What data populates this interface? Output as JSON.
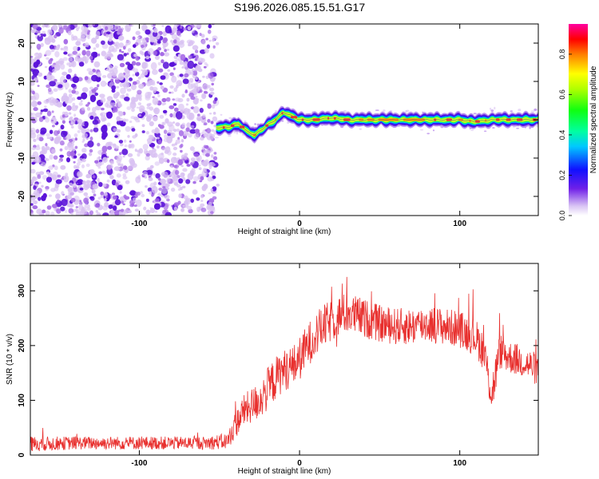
{
  "figure_title": "S196.2026.085.15.51.G17",
  "colors": {
    "snr_line": "#e8302e",
    "ridge": "#ff2a2a",
    "noise_light": "#d9c2f2",
    "noise_mid": "#a56ae6",
    "noise_dark": "#5a12d9"
  },
  "chart_data": [
    {
      "type": "heatmap",
      "id": "spectrogram",
      "title": "",
      "xlabel": "Height of straight line (km)",
      "ylabel": "Frequency (Hz)",
      "xlim": [
        -168,
        149
      ],
      "ylim": [
        -25,
        25
      ],
      "x_ticks": [
        -100,
        0,
        100
      ],
      "y_ticks": [
        -20,
        -10,
        0,
        10,
        20
      ],
      "noise_region_x": [
        -168,
        -52
      ],
      "ridge_x": [
        -52,
        149
      ],
      "ridge_frequency": {
        "x": [
          -52,
          -45,
          -38,
          -33,
          -28,
          -22,
          -15,
          -10,
          -5,
          0,
          10,
          20,
          30,
          40,
          60,
          80,
          100,
          110,
          120,
          130,
          149
        ],
        "y": [
          -2,
          -2,
          -1,
          -3,
          -4,
          -2,
          0,
          2,
          1,
          0,
          0,
          0.5,
          0,
          0,
          0,
          0,
          0,
          -0.5,
          0,
          0,
          0
        ]
      },
      "colorbar": {
        "label": "Normalized spectral amplitude",
        "range": [
          0.0,
          0.95
        ],
        "ticks": [
          0.0,
          0.2,
          0.4,
          0.6,
          0.8
        ],
        "tick_labels": [
          "0.0",
          "0.2",
          "0.4",
          "0.6",
          "0.8"
        ]
      }
    },
    {
      "type": "line",
      "id": "snr",
      "title": "",
      "xlabel": "Height of straight line (km)",
      "ylabel": "SNR (10 * v/v)",
      "xlim": [
        -168,
        149
      ],
      "ylim": [
        0,
        350
      ],
      "x_ticks": [
        -100,
        0,
        100
      ],
      "y_ticks": [
        0,
        100,
        200,
        300
      ],
      "series": [
        {
          "name": "SNR",
          "x": [
            -168,
            -140,
            -100,
            -60,
            -45,
            -40,
            -35,
            -25,
            -20,
            -15,
            -10,
            -5,
            0,
            5,
            10,
            15,
            20,
            25,
            30,
            40,
            50,
            60,
            70,
            80,
            90,
            100,
            110,
            115,
            120,
            125,
            130,
            140,
            149
          ],
          "values": [
            20,
            22,
            22,
            22,
            25,
            55,
            80,
            100,
            120,
            140,
            155,
            160,
            175,
            200,
            220,
            235,
            245,
            255,
            260,
            250,
            240,
            235,
            235,
            240,
            235,
            230,
            215,
            190,
            110,
            190,
            180,
            170,
            155
          ],
          "spread": [
            14,
            12,
            12,
            12,
            15,
            25,
            30,
            35,
            40,
            40,
            38,
            38,
            40,
            40,
            40,
            40,
            38,
            38,
            38,
            36,
            34,
            34,
            34,
            34,
            34,
            34,
            34,
            36,
            40,
            34,
            30,
            30,
            30
          ]
        }
      ]
    }
  ]
}
